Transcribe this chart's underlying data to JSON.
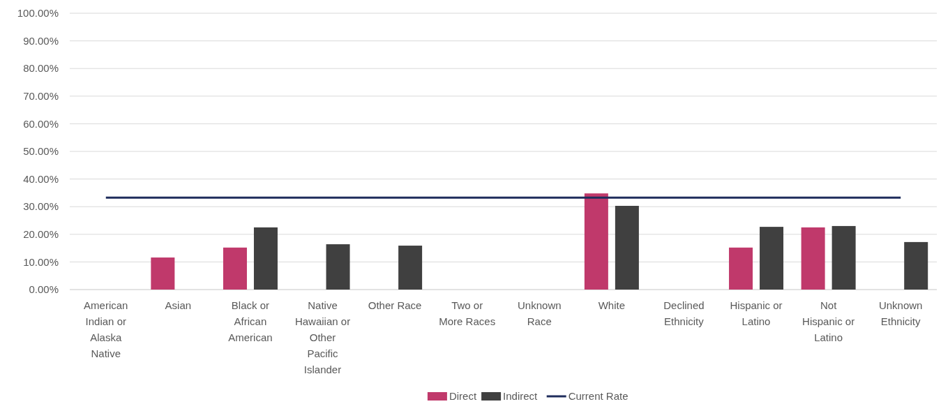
{
  "chart_data": {
    "type": "bar",
    "categories": [
      "American Indian or Alaska Native",
      "Asian",
      "Black or African American",
      "Native Hawaiian or Other Pacific Islander",
      "Other Race",
      "Two or More Races",
      "Unknown Race",
      "White",
      "Declined Ethnicity",
      "Hispanic or Latino",
      "Not Hispanic or Latino",
      "Unknown Ethnicity"
    ],
    "series": [
      {
        "name": "Direct",
        "color": "#c0396b",
        "values": [
          null,
          11.6,
          15.2,
          null,
          null,
          null,
          null,
          34.8,
          null,
          15.2,
          22.5,
          null
        ]
      },
      {
        "name": "Indirect",
        "color": "#404040",
        "values": [
          null,
          null,
          22.5,
          16.4,
          15.9,
          null,
          null,
          30.3,
          null,
          22.7,
          23.0,
          17.2
        ]
      },
      {
        "name": "Current Rate",
        "type": "line",
        "color": "#1f2d5c",
        "values": [
          33.3,
          33.3,
          33.3,
          33.3,
          33.3,
          33.3,
          33.3,
          33.3,
          33.3,
          33.3,
          33.3,
          33.3
        ]
      }
    ],
    "ylim": [
      0,
      100
    ],
    "yticks": [
      {
        "value": 0,
        "label": "0.00%"
      },
      {
        "value": 10,
        "label": "10.00%"
      },
      {
        "value": 20,
        "label": "20.00%"
      },
      {
        "value": 30,
        "label": "30.00%"
      },
      {
        "value": 40,
        "label": "40.00%"
      },
      {
        "value": 50,
        "label": "50.00%"
      },
      {
        "value": 60,
        "label": "60.00%"
      },
      {
        "value": 70,
        "label": "70.00%"
      },
      {
        "value": 80,
        "label": "80.00%"
      },
      {
        "value": 90,
        "label": "90.00%"
      },
      {
        "value": 100,
        "label": "100.00%"
      }
    ],
    "grid": "y",
    "legend": "bottom"
  }
}
